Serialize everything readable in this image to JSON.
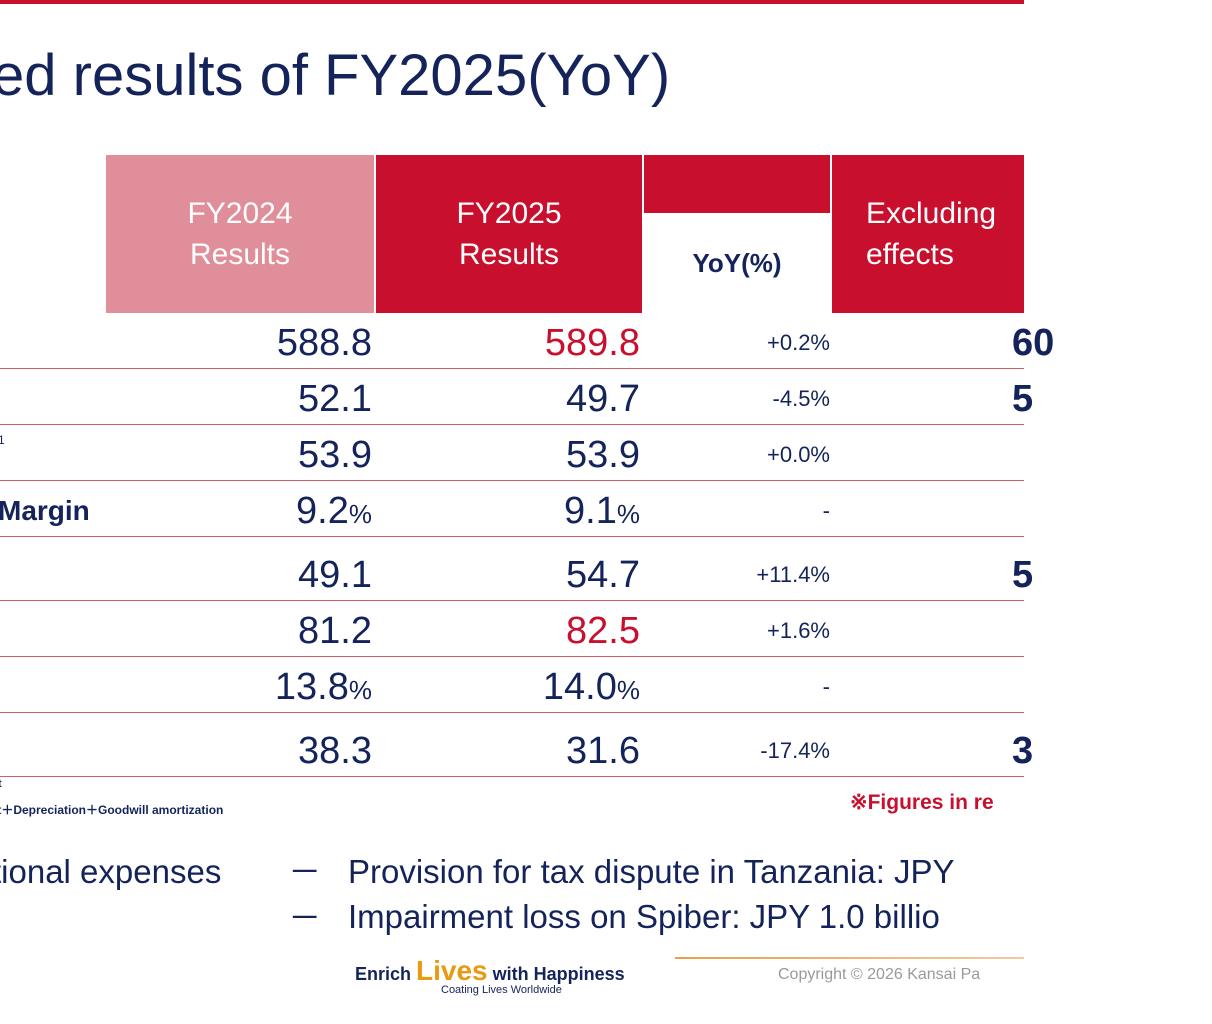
{
  "title": "ed results of FY2025(YoY)",
  "header": {
    "fy2024": [
      "FY2024",
      "Results"
    ],
    "fy2025": [
      "FY2025",
      "Results"
    ],
    "yoy": "YoY(%)",
    "excluding": [
      "Excluding",
      "effects"
    ]
  },
  "rows": [
    {
      "label": "",
      "fy2024": "588.8",
      "fy2024_unit": "",
      "fy2025": "589.8",
      "fy2025_unit": "",
      "fy2025_red": true,
      "yoy": "+0.2%",
      "excl": "60"
    },
    {
      "label": "",
      "fy2024": "52.1",
      "fy2024_unit": "",
      "fy2025": "49.7",
      "fy2025_unit": "",
      "fy2025_red": false,
      "yoy": "-4.5%",
      "excl": "5"
    },
    {
      "label": "1",
      "fy2024": "53.9",
      "fy2024_unit": "",
      "fy2025": "53.9",
      "fy2025_unit": "",
      "fy2025_red": false,
      "yoy": "+0.0%",
      "excl": ""
    },
    {
      "label": "Margin",
      "fy2024": "9.2",
      "fy2024_unit": "%",
      "fy2025": "9.1",
      "fy2025_unit": "%",
      "fy2025_red": false,
      "yoy": "-",
      "excl": ""
    },
    {
      "label": "",
      "fy2024": "49.1",
      "fy2024_unit": "",
      "fy2025": "54.7",
      "fy2025_unit": "",
      "fy2025_red": false,
      "yoy": "+11.4%",
      "excl": "5"
    },
    {
      "label": "",
      "fy2024": "81.2",
      "fy2024_unit": "",
      "fy2025": "82.5",
      "fy2025_unit": "",
      "fy2025_red": true,
      "yoy": "+1.6%",
      "excl": ""
    },
    {
      "label": "",
      "fy2024": "13.8",
      "fy2024_unit": "%",
      "fy2025": "14.0",
      "fy2025_unit": "%",
      "fy2025_red": false,
      "yoy": "-",
      "excl": ""
    },
    {
      "label": "",
      "fy2024": "38.3",
      "fy2024_unit": "",
      "fy2025": "31.6",
      "fy2025_unit": "",
      "fy2025_red": false,
      "yoy": "-17.4%",
      "excl": "3"
    }
  ],
  "footnotes": {
    "fn1": "t",
    "fn2": "it＋Depreciation＋Goodwill amortization",
    "figures_note": "※Figures in re"
  },
  "bullets": {
    "label": "tional expenses",
    "dash": "─",
    "items": [
      "Provision for tax dispute in Tanzania: JPY",
      "Impairment loss on Spiber: JPY 1.0 billio"
    ]
  },
  "brand": {
    "enrich": "Enrich ",
    "lives": "Lives",
    "with": " with Happiness",
    "tagline": "Coating Lives Worldwide"
  },
  "copyright": "Copyright © 2026 Kansai Pa",
  "colors": {
    "navy": "#14245a",
    "red": "#c8102e",
    "pink": "#e08f9a"
  }
}
